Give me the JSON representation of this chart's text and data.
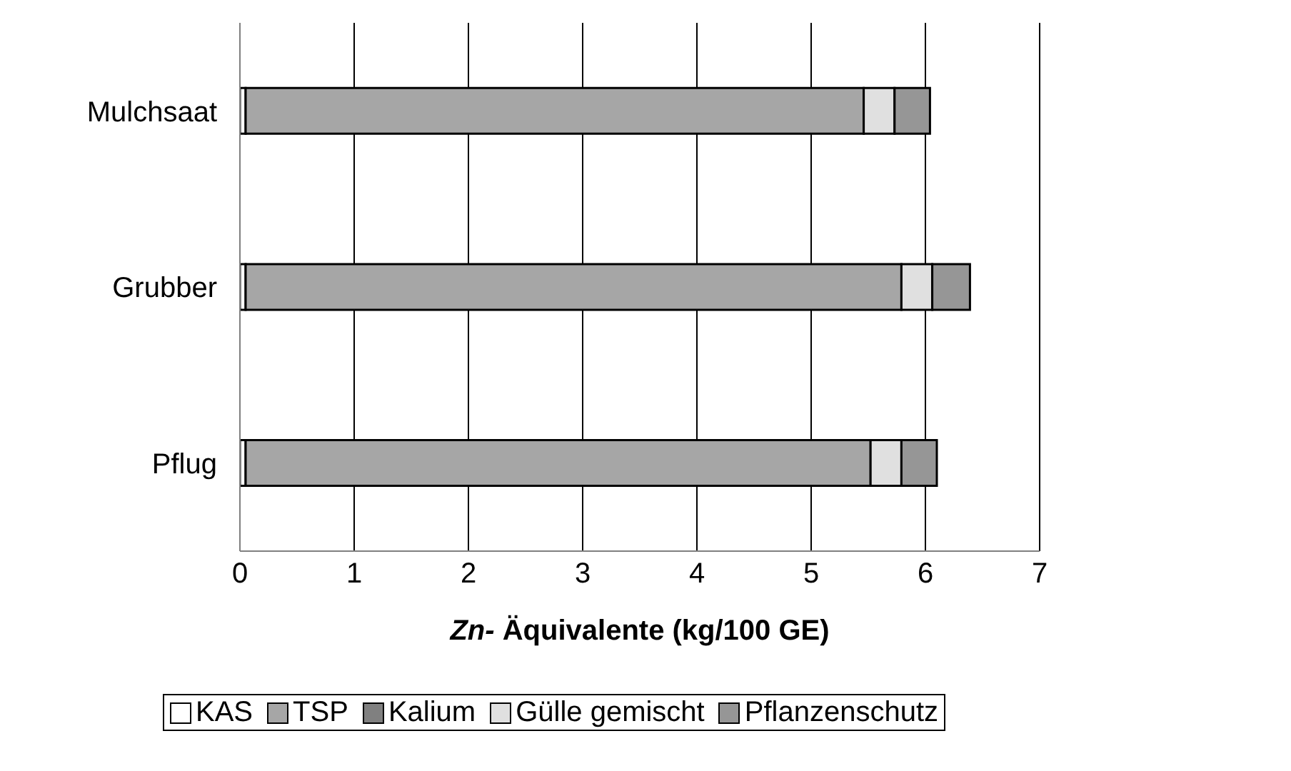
{
  "chart_data": {
    "type": "bar",
    "orientation": "horizontal",
    "stacked": true,
    "categories": [
      "Mulchsaat",
      "Grubber",
      "Pflug"
    ],
    "series": [
      {
        "name": "KAS",
        "color": "#ffffff",
        "values": [
          0.05,
          0.05,
          0.05
        ]
      },
      {
        "name": "TSP",
        "color": "#a6a6a6",
        "values": [
          5.41,
          5.74,
          5.47
        ]
      },
      {
        "name": "Kalium",
        "color": "#808080",
        "values": [
          0,
          0,
          0
        ]
      },
      {
        "name": "Gülle gemischt",
        "color": "#e0e0e0",
        "values": [
          0.27,
          0.27,
          0.27
        ]
      },
      {
        "name": "Pflanzenschutz",
        "color": "#969696",
        "values": [
          0.31,
          0.33,
          0.31
        ]
      }
    ],
    "xlabel": "Zn- Äquivalente (kg/100 GE)",
    "xlim": [
      0,
      7
    ],
    "xticks": [
      0,
      1,
      2,
      3,
      4,
      5,
      6,
      7
    ],
    "grid": "x",
    "legend": "bottom"
  }
}
